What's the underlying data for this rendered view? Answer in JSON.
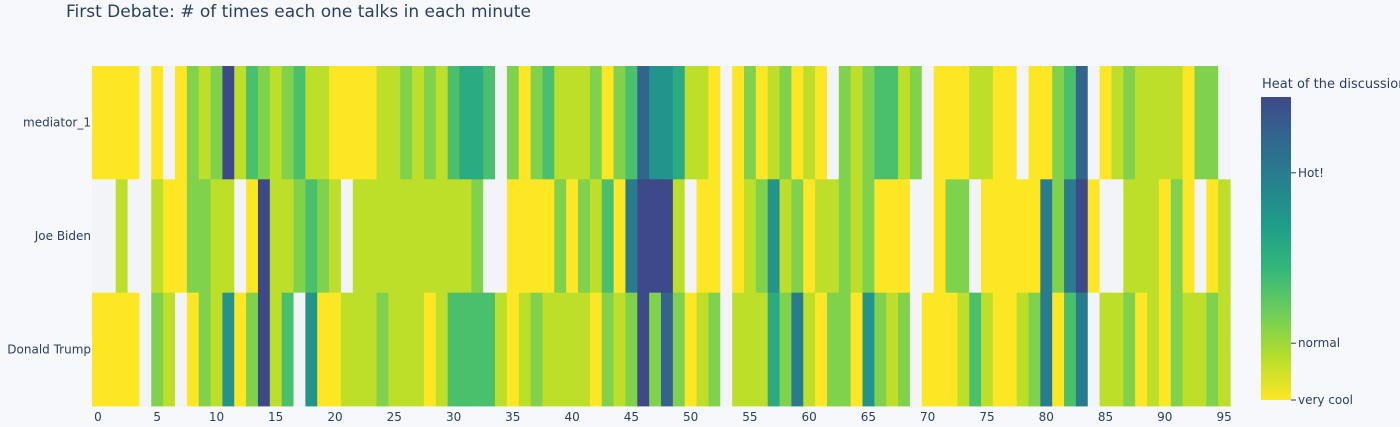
{
  "chart_data": {
    "type": "heatmap",
    "title": "First Debate: # of times each one talks in each minute",
    "rows": [
      "mediator_1",
      "Joe Biden",
      "Donald Trump"
    ],
    "x": [
      0,
      1,
      2,
      3,
      4,
      5,
      6,
      7,
      8,
      9,
      10,
      11,
      12,
      13,
      14,
      15,
      16,
      17,
      18,
      19,
      20,
      21,
      22,
      23,
      24,
      25,
      26,
      27,
      28,
      29,
      30,
      31,
      32,
      33,
      34,
      35,
      36,
      37,
      38,
      39,
      40,
      41,
      42,
      43,
      44,
      45,
      46,
      47,
      48,
      49,
      50,
      51,
      52,
      53,
      54,
      55,
      56,
      57,
      58,
      59,
      60,
      61,
      62,
      63,
      64,
      65,
      66,
      67,
      68,
      69,
      70,
      71,
      72,
      73,
      74,
      75,
      76,
      77,
      78,
      79,
      80,
      81,
      82,
      83,
      84,
      85,
      86,
      87,
      88,
      89,
      90,
      91,
      92,
      93,
      94,
      95
    ],
    "xticks": [
      0,
      5,
      10,
      15,
      20,
      25,
      30,
      35,
      40,
      45,
      50,
      55,
      60,
      65,
      70,
      75,
      80,
      85,
      90,
      95
    ],
    "xlim": [
      -0.5,
      95.5
    ],
    "z": [
      [
        1,
        1,
        1,
        1,
        null,
        1,
        null,
        1,
        3,
        2,
        3,
        9,
        2,
        4,
        3,
        2,
        3,
        4,
        2,
        2,
        1,
        1,
        1,
        1,
        2,
        2,
        3,
        2,
        3,
        2,
        4,
        5,
        5,
        4,
        null,
        3,
        1,
        3,
        4,
        2,
        2,
        2,
        3,
        1,
        3,
        4,
        8,
        6,
        6,
        5,
        2,
        2,
        1,
        null,
        1,
        3,
        1,
        2,
        3,
        1,
        2,
        1,
        null,
        3,
        2,
        3,
        4,
        4,
        2,
        3,
        null,
        1,
        1,
        1,
        2,
        2,
        1,
        1,
        null,
        1,
        1,
        3,
        4,
        8,
        null,
        1,
        2,
        3,
        2,
        2,
        2,
        2,
        1,
        3,
        3,
        null
      ],
      [
        null,
        null,
        2,
        null,
        null,
        2,
        1,
        1,
        3,
        3,
        2,
        2,
        null,
        1,
        9,
        2,
        2,
        3,
        4,
        3,
        2,
        null,
        2,
        2,
        2,
        2,
        2,
        2,
        2,
        2,
        2,
        2,
        3,
        null,
        null,
        1,
        1,
        1,
        1,
        3,
        1,
        3,
        2,
        4,
        1,
        7,
        9,
        9,
        9,
        2,
        null,
        1,
        1,
        null,
        1,
        2,
        3,
        6,
        2,
        3,
        1,
        2,
        2,
        3,
        2,
        3,
        1,
        1,
        1,
        null,
        null,
        1,
        3,
        3,
        null,
        1,
        1,
        1,
        1,
        1,
        7,
        3,
        7,
        9,
        1,
        null,
        null,
        2,
        2,
        2,
        1,
        3,
        1,
        null,
        1,
        2
      ],
      [
        1,
        1,
        1,
        1,
        null,
        3,
        2,
        null,
        1,
        3,
        2,
        6,
        1,
        3,
        9,
        2,
        4,
        null,
        6,
        1,
        1,
        2,
        2,
        2,
        3,
        2,
        2,
        2,
        1,
        2,
        4,
        4,
        4,
        4,
        2,
        1,
        2,
        3,
        2,
        2,
        2,
        2,
        1,
        3,
        2,
        3,
        9,
        3,
        8,
        3,
        1,
        2,
        3,
        null,
        2,
        2,
        2,
        5,
        3,
        7,
        2,
        1,
        3,
        3,
        1,
        6,
        3,
        2,
        3,
        null,
        1,
        1,
        1,
        2,
        4,
        2,
        1,
        1,
        2,
        3,
        7,
        1,
        4,
        7,
        null,
        2,
        2,
        3,
        1,
        2,
        1,
        3,
        2,
        2,
        3,
        2
      ]
    ],
    "colorbar": {
      "title": "Heat of the discussion",
      "tick_labels": [
        "Hot!",
        "normal",
        "very cool"
      ],
      "tick_values": [
        7,
        2.5,
        1
      ],
      "range": [
        1,
        9
      ],
      "colorscale": [
        "#fde725",
        "#b5de2b",
        "#6ece58",
        "#35b779",
        "#1f9e89",
        "#26828e",
        "#31688e",
        "#3e4989"
      ]
    },
    "grid": false,
    "missing_color": "#f2f4f7"
  }
}
